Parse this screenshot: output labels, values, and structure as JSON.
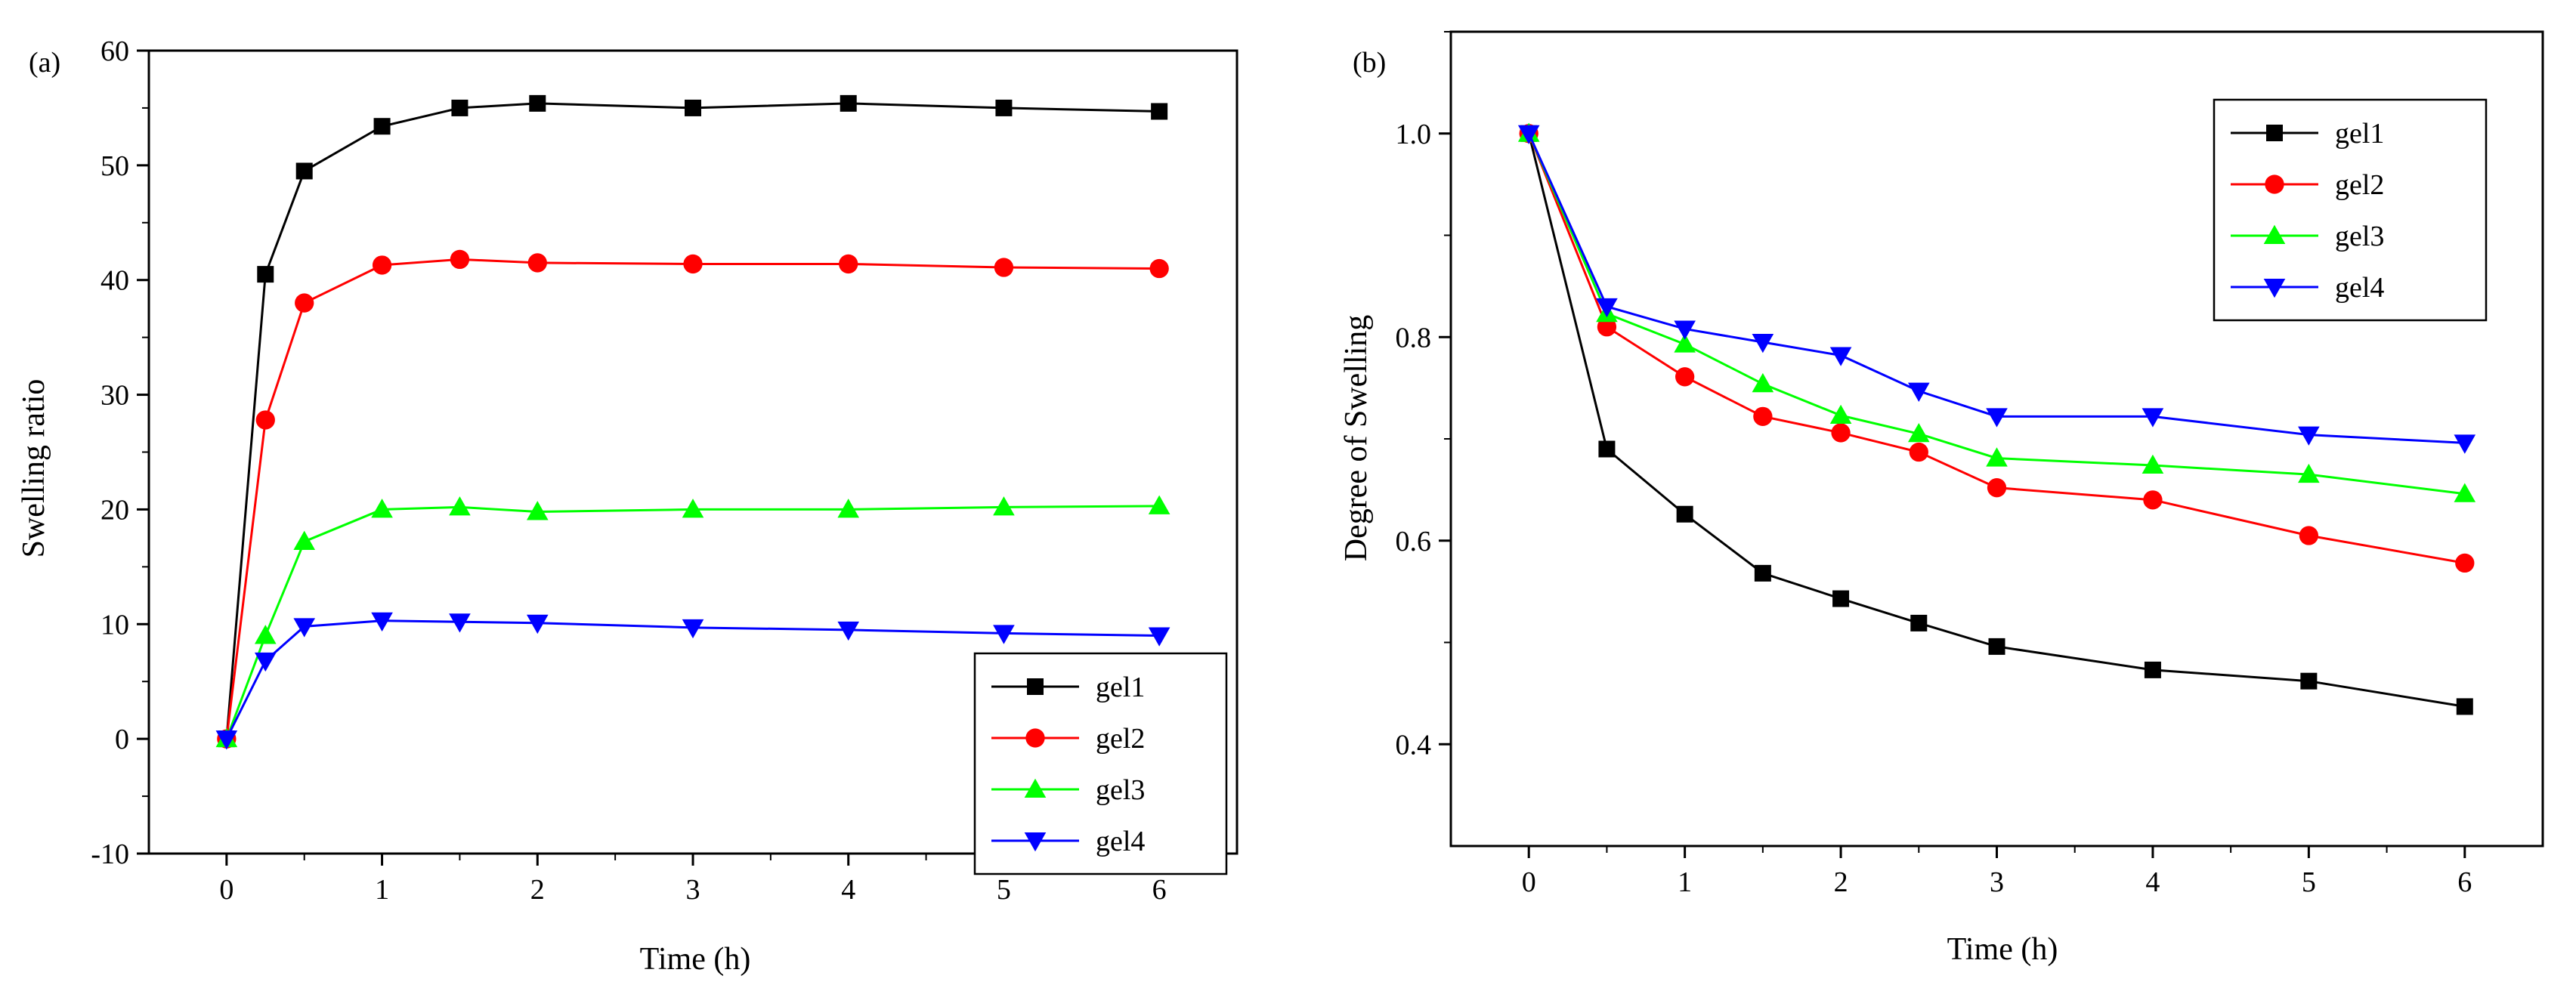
{
  "chart_data": [
    {
      "type": "line",
      "panel_label": "(a)",
      "xlabel": "Time (h)",
      "ylabel": "Swelling ratio",
      "xlim": [
        -0.5,
        6.5
      ],
      "ylim": [
        -10,
        60
      ],
      "xticks": [
        0,
        1,
        2,
        3,
        4,
        5,
        6
      ],
      "yticks": [
        -10,
        0,
        10,
        20,
        30,
        40,
        50,
        60
      ],
      "legend_position": "bottom-right",
      "grid": false,
      "series": [
        {
          "name": "gel1",
          "color": "#000000",
          "marker": "square",
          "x": [
            0,
            0.25,
            0.5,
            1,
            1.5,
            2,
            3,
            4,
            5,
            6
          ],
          "y": [
            0,
            40.5,
            49.5,
            53.4,
            55.0,
            55.4,
            55.0,
            55.4,
            55.0,
            54.7
          ]
        },
        {
          "name": "gel2",
          "color": "#ff0000",
          "marker": "circle",
          "x": [
            0,
            0.25,
            0.5,
            1,
            1.5,
            2,
            3,
            4,
            5,
            6
          ],
          "y": [
            0,
            27.8,
            38.0,
            41.3,
            41.8,
            41.5,
            41.4,
            41.4,
            41.1,
            41.0
          ]
        },
        {
          "name": "gel3",
          "color": "#00ff00",
          "marker": "triangle-up",
          "x": [
            0,
            0.25,
            0.5,
            1,
            1.5,
            2,
            3,
            4,
            5,
            6
          ],
          "y": [
            0,
            9.0,
            17.2,
            20.0,
            20.2,
            19.8,
            20.0,
            20.0,
            20.2,
            20.3
          ]
        },
        {
          "name": "gel4",
          "color": "#0000ff",
          "marker": "triangle-down",
          "x": [
            0,
            0.25,
            0.5,
            1,
            1.5,
            2,
            3,
            4,
            5,
            6
          ],
          "y": [
            0,
            6.8,
            9.8,
            10.3,
            10.2,
            10.1,
            9.7,
            9.5,
            9.2,
            9.0
          ]
        }
      ]
    },
    {
      "type": "line",
      "panel_label": "(b)",
      "xlabel": "Time (h)",
      "ylabel": "Degree of Swelling",
      "xlim": [
        -0.5,
        6.5
      ],
      "ylim": [
        0.3,
        1.1
      ],
      "xticks": [
        0,
        1,
        2,
        3,
        4,
        5,
        6
      ],
      "yticks": [
        0.4,
        0.6,
        0.8,
        1.0
      ],
      "ytick_labels": [
        "0.4",
        "0.6",
        "0.8",
        "1.0"
      ],
      "legend_position": "top-right",
      "grid": false,
      "series": [
        {
          "name": "gel1",
          "color": "#000000",
          "marker": "square",
          "x": [
            0,
            0.5,
            1,
            1.5,
            2,
            2.5,
            3,
            4,
            5,
            6
          ],
          "y": [
            1.0,
            0.69,
            0.626,
            0.568,
            0.543,
            0.519,
            0.496,
            0.473,
            0.462,
            0.437
          ]
        },
        {
          "name": "gel2",
          "color": "#ff0000",
          "marker": "circle",
          "x": [
            0,
            0.5,
            1,
            1.5,
            2,
            2.5,
            3,
            4,
            5,
            6
          ],
          "y": [
            1.0,
            0.81,
            0.761,
            0.722,
            0.706,
            0.687,
            0.652,
            0.64,
            0.605,
            0.578
          ]
        },
        {
          "name": "gel3",
          "color": "#00ff00",
          "marker": "triangle-up",
          "x": [
            0,
            0.5,
            1,
            1.5,
            2,
            2.5,
            3,
            4,
            5,
            6
          ],
          "y": [
            1.0,
            0.823,
            0.793,
            0.754,
            0.723,
            0.705,
            0.681,
            0.674,
            0.665,
            0.646
          ]
        },
        {
          "name": "gel4",
          "color": "#0000ff",
          "marker": "triangle-down",
          "x": [
            0,
            0.5,
            1,
            1.5,
            2,
            2.5,
            3,
            4,
            5,
            6
          ],
          "y": [
            1.0,
            0.83,
            0.808,
            0.795,
            0.782,
            0.747,
            0.722,
            0.722,
            0.704,
            0.696
          ]
        }
      ]
    }
  ]
}
